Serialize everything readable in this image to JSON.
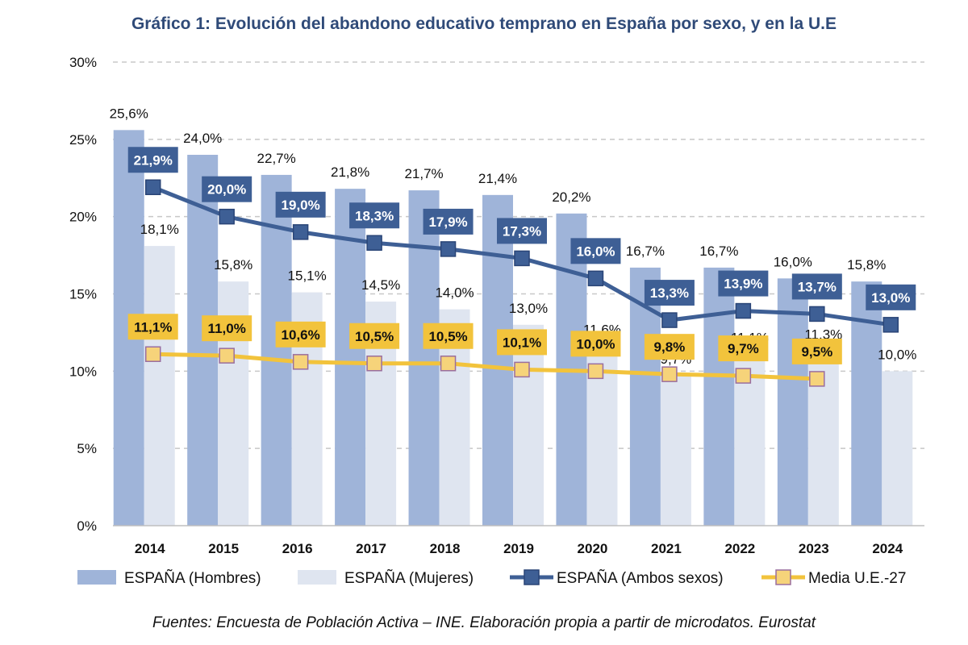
{
  "title": "Gráfico 1: Evolución del abandono educativo temprano en España por sexo, y en la U.E",
  "source": "Fuentes: Encuesta de Población Activa – INE. Elaboración propia a partir de microdatos. Eurostat",
  "colors": {
    "hombres": "#9fb4d9",
    "mujeres": "#dfe5f0",
    "ambos": "#3e5f95",
    "media_ue": "#f2c33c",
    "media_ue_marker": "#9a6e9e",
    "grid": "#c8c8c8"
  },
  "chart_data": {
    "type": "bar",
    "categories": [
      "2014",
      "2015",
      "2016",
      "2017",
      "2018",
      "2019",
      "2020",
      "2021",
      "2022",
      "2023",
      "2024"
    ],
    "ylim": [
      0,
      30
    ],
    "yticks": [
      0,
      5,
      10,
      15,
      20,
      25,
      30
    ],
    "ytick_labels": [
      "0%",
      "5%",
      "10%",
      "15%",
      "20%",
      "25%",
      "30%"
    ],
    "grid": true,
    "legend_position": "bottom",
    "series": [
      {
        "name": "ESPAÑA (Hombres)",
        "type": "bar",
        "values": [
          25.6,
          24.0,
          22.7,
          21.8,
          21.7,
          21.4,
          20.2,
          16.7,
          16.7,
          16.0,
          15.8
        ],
        "labels": [
          "25,6%",
          "24,0%",
          "22,7%",
          "21,8%",
          "21,7%",
          "21,4%",
          "20,2%",
          "16,7%",
          "16,7%",
          "16,0%",
          "15,8%"
        ]
      },
      {
        "name": "ESPAÑA (Mujeres)",
        "type": "bar",
        "values": [
          18.1,
          15.8,
          15.1,
          14.5,
          14.0,
          13.0,
          11.6,
          9.7,
          11.1,
          11.3,
          10.0
        ],
        "labels": [
          "18,1%",
          "15,8%",
          "15,1%",
          "14,5%",
          "14,0%",
          "13,0%",
          "11,6%",
          "9,7%",
          "11,1%",
          "11,3%",
          "10,0%"
        ]
      },
      {
        "name": "ESPAÑA (Ambos sexos)",
        "type": "line",
        "values": [
          21.9,
          20.0,
          19.0,
          18.3,
          17.9,
          17.3,
          16.0,
          13.3,
          13.9,
          13.7,
          13.0
        ],
        "labels": [
          "21,9%",
          "20,0%",
          "19,0%",
          "18,3%",
          "17,9%",
          "17,3%",
          "16,0%",
          "13,3%",
          "13,9%",
          "13,7%",
          "13,0%"
        ]
      },
      {
        "name": "Media U.E.-27",
        "type": "line",
        "values": [
          11.1,
          11.0,
          10.6,
          10.5,
          10.5,
          10.1,
          10.0,
          9.8,
          9.7,
          9.5,
          null
        ],
        "labels": [
          "11,1%",
          "11,0%",
          "10,6%",
          "10,5%",
          "10,5%",
          "10,1%",
          "10,0%",
          "9,8%",
          "9,7%",
          "9,5%",
          null
        ]
      }
    ]
  }
}
